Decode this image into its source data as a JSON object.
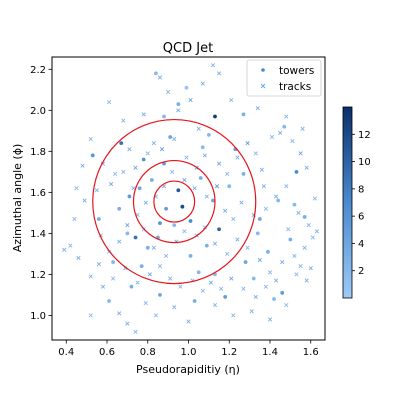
{
  "chart_data": {
    "type": "scatter",
    "title": "QCD Jet",
    "xlabel": "Pseudorapiditiy (η)",
    "ylabel": "Azimuthal angle (ϕ)",
    "xlim": [
      0.33,
      1.67
    ],
    "ylim": [
      0.88,
      2.26
    ],
    "xticks": [
      "0.4",
      "0.6",
      "0.8",
      "1.0",
      "1.2",
      "1.4",
      "1.6"
    ],
    "yticks": [
      "1.0",
      "1.2",
      "1.4",
      "1.6",
      "1.8",
      "2.0",
      "2.2"
    ],
    "legend": {
      "placement": "top-right",
      "entries": [
        "towers",
        "tracks"
      ]
    },
    "colorbar": {
      "ticks": [
        "2",
        "4",
        "6",
        "8",
        "10",
        "12"
      ],
      "range": [
        0,
        14
      ]
    },
    "circles": {
      "center": [
        0.93,
        1.555
      ],
      "radii": [
        0.1,
        0.2,
        0.4
      ],
      "color": "#e8141c"
    },
    "towers": [
      [
        0.84,
        2.18,
        2
      ],
      [
        0.99,
        2.11,
        1
      ],
      [
        1.13,
        1.97,
        13
      ],
      [
        0.67,
        1.84,
        9
      ],
      [
        0.78,
        1.76,
        6
      ],
      [
        0.76,
        1.62,
        4
      ],
      [
        0.82,
        1.66,
        3
      ],
      [
        0.88,
        1.74,
        5
      ],
      [
        0.95,
        1.61,
        11
      ],
      [
        0.97,
        1.53,
        12
      ],
      [
        0.89,
        1.52,
        5
      ],
      [
        1.06,
        1.67,
        3
      ],
      [
        1.12,
        1.56,
        4
      ],
      [
        1.01,
        1.46,
        7
      ],
      [
        0.93,
        1.44,
        2
      ],
      [
        0.85,
        1.38,
        4
      ],
      [
        0.74,
        1.38,
        9
      ],
      [
        0.66,
        1.52,
        3
      ],
      [
        1.09,
        1.34,
        3
      ],
      [
        1.15,
        1.42,
        10
      ],
      [
        1.2,
        1.63,
        2
      ],
      [
        1.23,
        1.81,
        5
      ],
      [
        1.27,
        1.69,
        3
      ],
      [
        1.35,
        1.47,
        4
      ],
      [
        1.39,
        1.31,
        3
      ],
      [
        1.53,
        1.7,
        7
      ],
      [
        1.57,
        1.48,
        3
      ],
      [
        1.44,
        1.56,
        2
      ],
      [
        0.8,
        1.33,
        3
      ],
      [
        0.63,
        1.26,
        2
      ],
      [
        0.71,
        1.58,
        5
      ],
      [
        0.86,
        1.45,
        6
      ],
      [
        1.01,
        1.29,
        3
      ],
      [
        1.13,
        1.2,
        2
      ],
      [
        1.28,
        1.26,
        4
      ],
      [
        0.56,
        1.47,
        3
      ],
      [
        0.53,
        1.78,
        6
      ],
      [
        0.91,
        1.87,
        4
      ],
      [
        1.07,
        1.82,
        2
      ],
      [
        1.27,
        1.98,
        3
      ],
      [
        1.47,
        1.92,
        2
      ],
      [
        0.72,
        1.14,
        3
      ],
      [
        0.86,
        1.1,
        4
      ],
      [
        1.42,
        1.08,
        2
      ],
      [
        0.61,
        1.07,
        2
      ],
      [
        1.18,
        1.09,
        5
      ],
      [
        1.05,
        1.21,
        2
      ],
      [
        1.5,
        1.37,
        3
      ],
      [
        1.46,
        1.11,
        5
      ],
      [
        0.88,
        1.97,
        2
      ],
      [
        0.77,
        1.24,
        3
      ],
      [
        1.34,
        1.4,
        2
      ],
      [
        1.52,
        1.54,
        2
      ],
      [
        0.7,
        1.4,
        2
      ],
      [
        1.03,
        1.07,
        3
      ],
      [
        1.32,
        1.18,
        2
      ],
      [
        0.95,
        2.03,
        3
      ],
      [
        1.1,
        1.88,
        2
      ]
    ],
    "tracks": [
      [
        0.86,
        2.16,
        3
      ],
      [
        1.12,
        2.22,
        2
      ],
      [
        1.15,
        2.18,
        3
      ],
      [
        1.01,
        2.05,
        4
      ],
      [
        0.95,
        2.0,
        3
      ],
      [
        0.61,
        2.04,
        2
      ],
      [
        0.52,
        1.86,
        2
      ],
      [
        0.58,
        1.74,
        3
      ],
      [
        0.64,
        1.69,
        2
      ],
      [
        0.71,
        1.81,
        3
      ],
      [
        0.74,
        1.72,
        4
      ],
      [
        0.8,
        1.79,
        2
      ],
      [
        0.83,
        1.84,
        3
      ],
      [
        0.87,
        1.81,
        5
      ],
      [
        0.93,
        1.86,
        3
      ],
      [
        0.99,
        1.77,
        2
      ],
      [
        1.04,
        1.72,
        6
      ],
      [
        1.08,
        1.78,
        3
      ],
      [
        1.15,
        1.74,
        4
      ],
      [
        1.19,
        1.69,
        2
      ],
      [
        1.24,
        1.77,
        3
      ],
      [
        1.29,
        1.84,
        5
      ],
      [
        1.33,
        1.79,
        2
      ],
      [
        1.36,
        1.71,
        3
      ],
      [
        1.41,
        1.87,
        2
      ],
      [
        1.45,
        1.89,
        3
      ],
      [
        1.51,
        1.85,
        2
      ],
      [
        1.55,
        1.79,
        4
      ],
      [
        1.58,
        1.72,
        3
      ],
      [
        1.48,
        1.63,
        2
      ],
      [
        1.43,
        1.58,
        3
      ],
      [
        1.38,
        1.52,
        2
      ],
      [
        1.32,
        1.49,
        4
      ],
      [
        1.26,
        1.55,
        3
      ],
      [
        1.22,
        1.47,
        2
      ],
      [
        1.18,
        1.51,
        3
      ],
      [
        1.14,
        1.63,
        5
      ],
      [
        1.09,
        1.58,
        2
      ],
      [
        1.03,
        1.62,
        3
      ],
      [
        0.98,
        1.66,
        4
      ],
      [
        0.92,
        1.7,
        2
      ],
      [
        0.88,
        1.63,
        3
      ],
      [
        0.84,
        1.58,
        2
      ],
      [
        0.79,
        1.55,
        3
      ],
      [
        0.75,
        1.49,
        2
      ],
      [
        0.7,
        1.44,
        4
      ],
      [
        0.66,
        1.36,
        3
      ],
      [
        0.61,
        1.31,
        2
      ],
      [
        0.56,
        1.25,
        3
      ],
      [
        0.52,
        1.19,
        2
      ],
      [
        0.46,
        1.28,
        3
      ],
      [
        0.42,
        1.34,
        2
      ],
      [
        0.39,
        1.32,
        3
      ],
      [
        0.44,
        1.47,
        2
      ],
      [
        0.49,
        1.56,
        3
      ],
      [
        0.55,
        1.61,
        2
      ],
      [
        0.62,
        1.64,
        4
      ],
      [
        0.68,
        1.7,
        2
      ],
      [
        0.73,
        1.62,
        3
      ],
      [
        0.78,
        1.42,
        2
      ],
      [
        0.83,
        1.33,
        3
      ],
      [
        0.89,
        1.29,
        2
      ],
      [
        0.94,
        1.36,
        4
      ],
      [
        0.98,
        1.41,
        2
      ],
      [
        1.04,
        1.39,
        3
      ],
      [
        1.08,
        1.43,
        2
      ],
      [
        1.13,
        1.35,
        3
      ],
      [
        1.19,
        1.3,
        2
      ],
      [
        1.24,
        1.37,
        3
      ],
      [
        1.29,
        1.33,
        2
      ],
      [
        1.35,
        1.27,
        4
      ],
      [
        1.4,
        1.21,
        2
      ],
      [
        1.46,
        1.26,
        3
      ],
      [
        1.52,
        1.29,
        2
      ],
      [
        1.57,
        1.33,
        3
      ],
      [
        1.61,
        1.38,
        2
      ],
      [
        1.63,
        1.41,
        3
      ],
      [
        1.59,
        1.44,
        2
      ],
      [
        1.54,
        1.5,
        3
      ],
      [
        1.49,
        1.42,
        2
      ],
      [
        0.58,
        1.14,
        3
      ],
      [
        0.63,
        1.18,
        2
      ],
      [
        0.69,
        1.23,
        3
      ],
      [
        0.75,
        1.16,
        2
      ],
      [
        0.81,
        1.2,
        4
      ],
      [
        0.86,
        1.24,
        2
      ],
      [
        0.91,
        1.18,
        3
      ],
      [
        0.96,
        1.14,
        2
      ],
      [
        1.02,
        1.17,
        3
      ],
      [
        1.07,
        1.12,
        2
      ],
      [
        1.11,
        1.16,
        3
      ],
      [
        1.16,
        1.13,
        2
      ],
      [
        1.21,
        1.18,
        4
      ],
      [
        1.27,
        1.13,
        2
      ],
      [
        1.33,
        1.09,
        3
      ],
      [
        1.38,
        1.14,
        2
      ],
      [
        1.43,
        1.17,
        3
      ],
      [
        1.53,
        1.2,
        2
      ],
      [
        1.58,
        1.17,
        3
      ],
      [
        1.48,
        1.05,
        2
      ],
      [
        1.31,
        1.02,
        3
      ],
      [
        1.13,
        1.05,
        2
      ],
      [
        0.93,
        1.04,
        3
      ],
      [
        0.79,
        1.06,
        2
      ],
      [
        0.66,
        1.01,
        3
      ],
      [
        0.52,
        1.0,
        2
      ],
      [
        0.7,
        0.96,
        3
      ],
      [
        0.74,
        0.92,
        2
      ],
      [
        0.84,
        1.0,
        2
      ],
      [
        1.0,
        0.97,
        3
      ],
      [
        1.22,
        1.0,
        2
      ],
      [
        1.4,
        0.98,
        3
      ],
      [
        1.55,
        1.24,
        2
      ],
      [
        1.6,
        1.23,
        3
      ],
      [
        0.45,
        1.62,
        2
      ],
      [
        0.48,
        1.73,
        3
      ],
      [
        0.68,
        1.95,
        2
      ],
      [
        0.78,
        1.98,
        3
      ],
      [
        0.9,
        2.09,
        2
      ],
      [
        1.07,
        2.13,
        3
      ],
      [
        1.21,
        2.05,
        2
      ],
      [
        1.34,
        2.01,
        3
      ],
      [
        1.48,
        1.97,
        2
      ],
      [
        1.56,
        1.91,
        3
      ],
      [
        1.62,
        1.57,
        2
      ],
      [
        1.05,
        1.91,
        3
      ],
      [
        0.57,
        1.39,
        2
      ],
      [
        1.37,
        1.63,
        3
      ]
    ]
  }
}
